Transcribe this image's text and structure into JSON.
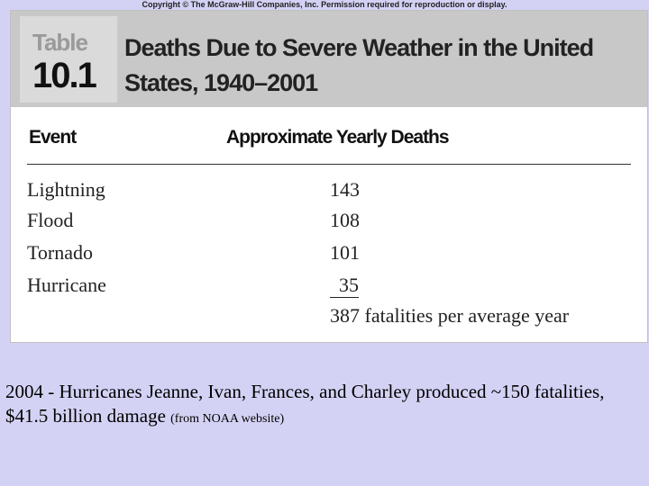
{
  "copyright": "Copyright © The McGraw-Hill Companies, Inc. Permission required for reproduction or display.",
  "table": {
    "label_word": "Table",
    "label_number": "10.1",
    "title": "Deaths Due to Severe Weather in the United States, 1940–2001",
    "columns": {
      "event": "Event",
      "deaths": "Approximate Yearly Deaths"
    },
    "rows": [
      {
        "event": "Lightning",
        "deaths": "143"
      },
      {
        "event": "Flood",
        "deaths": "108"
      },
      {
        "event": "Tornado",
        "deaths": "101"
      },
      {
        "event": "Hurricane",
        "deaths": "35"
      }
    ],
    "total": "387 fatalities per average year"
  },
  "note": {
    "text": "2004 - Hurricanes Jeanne, Ivan, Frances, and Charley produced ~150 fatalities, $41.5 billion damage ",
    "source": "(from NOAA website)"
  }
}
